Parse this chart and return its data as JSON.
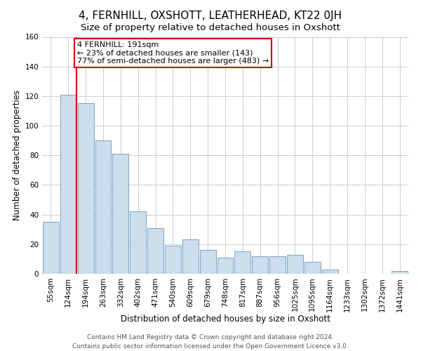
{
  "title": "4, FERNHILL, OXSHOTT, LEATHERHEAD, KT22 0JH",
  "subtitle": "Size of property relative to detached houses in Oxshott",
  "xlabel": "Distribution of detached houses by size in Oxshott",
  "ylabel": "Number of detached properties",
  "bar_labels": [
    "55sqm",
    "124sqm",
    "194sqm",
    "263sqm",
    "332sqm",
    "402sqm",
    "471sqm",
    "540sqm",
    "609sqm",
    "679sqm",
    "748sqm",
    "817sqm",
    "887sqm",
    "956sqm",
    "1025sqm",
    "1095sqm",
    "1164sqm",
    "1233sqm",
    "1302sqm",
    "1372sqm",
    "1441sqm"
  ],
  "bar_values": [
    35,
    121,
    115,
    90,
    81,
    42,
    31,
    19,
    23,
    16,
    11,
    15,
    12,
    12,
    13,
    8,
    3,
    0,
    0,
    0,
    2
  ],
  "bar_color": "#ccdded",
  "bar_edge_color": "#6699bb",
  "vline_x_index": 1,
  "vline_color": "#cc0000",
  "annotation_text": "4 FERNHILL: 191sqm\n← 23% of detached houses are smaller (143)\n77% of semi-detached houses are larger (483) →",
  "annotation_box_edgecolor": "#cc0000",
  "annotation_box_facecolor": "#ffffff",
  "ylim": [
    0,
    160
  ],
  "yticks": [
    0,
    20,
    40,
    60,
    80,
    100,
    120,
    140,
    160
  ],
  "footer_line1": "Contains HM Land Registry data © Crown copyright and database right 2024.",
  "footer_line2": "Contains public sector information licensed under the Open Government Licence v3.0.",
  "background_color": "#ffffff",
  "grid_color": "#cccccc",
  "title_fontsize": 11,
  "xlabel_fontsize": 8.5,
  "ylabel_fontsize": 8.5,
  "tick_fontsize": 7.5,
  "footer_fontsize": 6.5,
  "annotation_fontsize": 8
}
